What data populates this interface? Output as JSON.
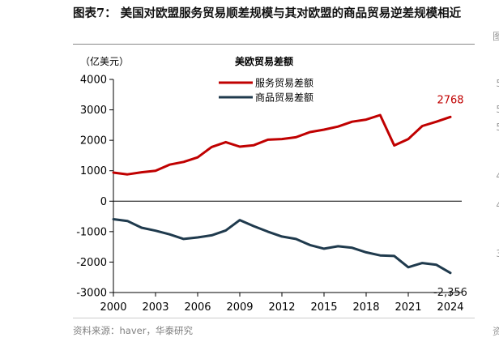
{
  "title": "图表7： 美国对欧盟服务贸易顺差规模与其对欧盟的商品贸易逆差规模相近",
  "source": "资料来源：haver，华泰研究",
  "edge_glyphs": [
    "图",
    "5",
    "5",
    "5",
    "4",
    "4",
    "3",
    "资"
  ],
  "colors": {
    "services": "#c00000",
    "goods": "#1f3a4d",
    "axis": "#000000"
  },
  "chart_data": {
    "type": "line",
    "title": "美欧贸易差额",
    "unit": "（亿美元）",
    "x": [
      2000,
      2001,
      2002,
      2003,
      2004,
      2005,
      2006,
      2007,
      2008,
      2009,
      2010,
      2011,
      2012,
      2013,
      2014,
      2015,
      2016,
      2017,
      2018,
      2019,
      2020,
      2021,
      2022,
      2023,
      2024
    ],
    "x_ticks": [
      2000,
      2003,
      2006,
      2009,
      2012,
      2015,
      2018,
      2021,
      2024
    ],
    "y_ticks": [
      -3000,
      -2000,
      -1000,
      0,
      1000,
      2000,
      3000,
      4000
    ],
    "ylim": [
      -3000,
      4000
    ],
    "legend_position": "top-center",
    "grid": false,
    "series": [
      {
        "name": "服务贸易差额",
        "key": "services",
        "values": [
          940,
          880,
          950,
          1000,
          1200,
          1290,
          1440,
          1780,
          1940,
          1790,
          1840,
          2020,
          2040,
          2100,
          2270,
          2350,
          2450,
          2610,
          2680,
          2830,
          1830,
          2040,
          2470,
          2610,
          2768
        ],
        "end_label": "2768"
      },
      {
        "name": "商品贸易差额",
        "key": "goods",
        "values": [
          -590,
          -650,
          -870,
          -970,
          -1090,
          -1240,
          -1190,
          -1120,
          -960,
          -620,
          -820,
          -1000,
          -1160,
          -1240,
          -1440,
          -1560,
          -1480,
          -1530,
          -1680,
          -1780,
          -1800,
          -2170,
          -2030,
          -2090,
          -2356
        ],
        "end_label": "-2,356"
      }
    ]
  }
}
